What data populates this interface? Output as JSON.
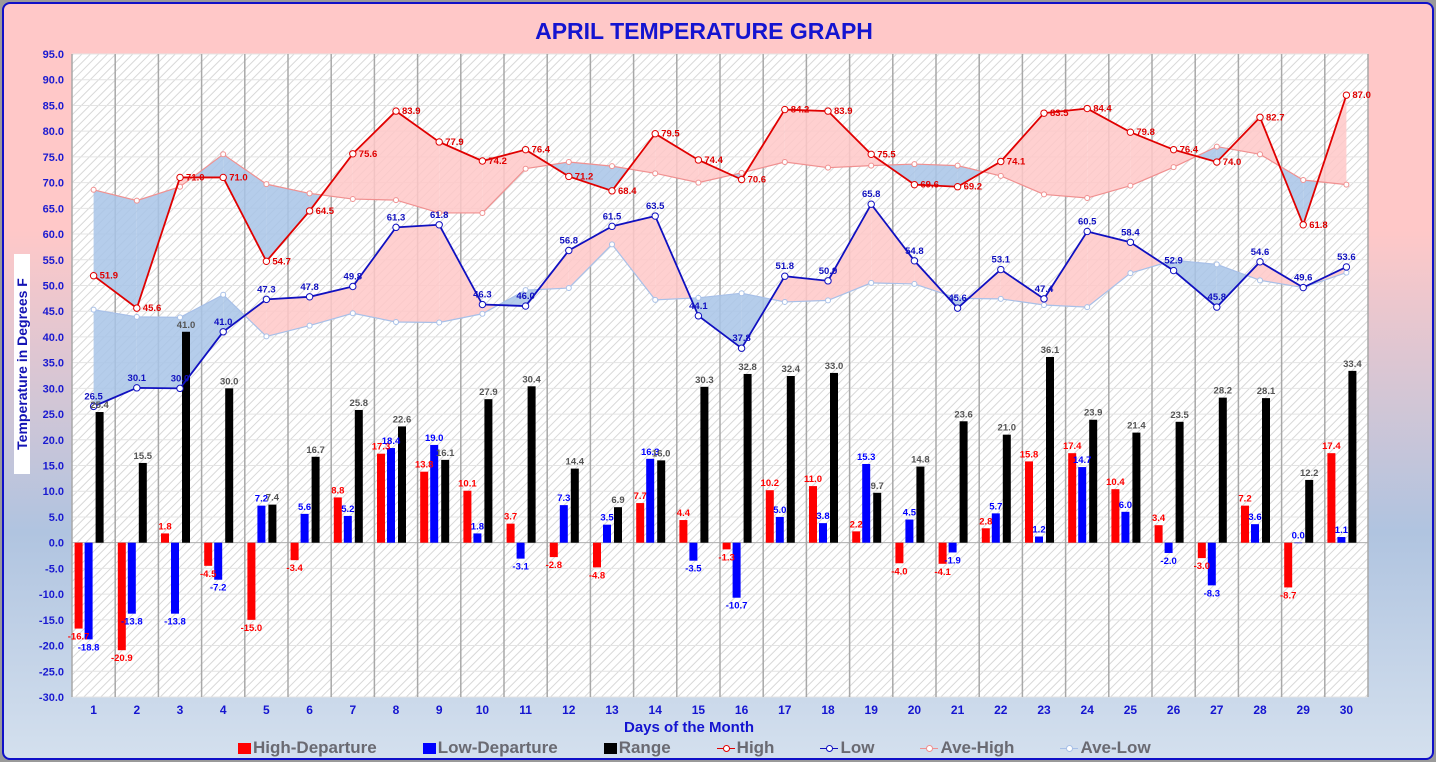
{
  "chart_data": {
    "type": "bar",
    "title": "APRIL TEMPERATURE GRAPH",
    "xlabel": "Days of the Month",
    "ylabel": "Temperature  in  Degrees  F",
    "ylim": [
      -30,
      95
    ],
    "ytick_step": 5,
    "grid": true,
    "legend_position": "bottom",
    "categories": [
      "1",
      "2",
      "3",
      "4",
      "5",
      "6",
      "7",
      "8",
      "9",
      "10",
      "11",
      "12",
      "13",
      "14",
      "15",
      "16",
      "17",
      "18",
      "19",
      "20",
      "21",
      "22",
      "23",
      "24",
      "25",
      "26",
      "27",
      "28",
      "29",
      "30"
    ],
    "series": [
      {
        "name": "High-Departure",
        "type": "bar",
        "color": "#ff0000",
        "values": [
          -16.7,
          -20.9,
          1.8,
          -4.5,
          -15.0,
          -3.4,
          8.8,
          17.3,
          13.8,
          10.1,
          3.7,
          -2.8,
          -4.8,
          7.7,
          4.4,
          -1.3,
          10.2,
          11.0,
          2.2,
          -4.0,
          -4.1,
          2.8,
          15.8,
          17.4,
          10.4,
          3.4,
          -3.0,
          7.2,
          -8.7,
          17.4
        ]
      },
      {
        "name": "Low-Departure",
        "type": "bar",
        "color": "#0000ff",
        "values": [
          -18.8,
          -13.8,
          -13.8,
          -7.2,
          7.2,
          5.6,
          5.2,
          18.4,
          19.0,
          1.8,
          -3.1,
          7.3,
          3.5,
          16.3,
          -3.5,
          -10.7,
          5.0,
          3.8,
          15.3,
          4.5,
          -1.9,
          5.7,
          1.2,
          14.7,
          6.0,
          -2.0,
          -8.3,
          3.6,
          0.0,
          1.1
        ]
      },
      {
        "name": "Range",
        "type": "bar",
        "color": "#000000",
        "values": [
          25.4,
          15.5,
          41.0,
          30.0,
          7.4,
          16.7,
          25.8,
          22.6,
          16.1,
          27.9,
          30.4,
          14.4,
          6.9,
          16.0,
          30.3,
          32.8,
          32.4,
          33.0,
          9.7,
          14.8,
          23.6,
          21.0,
          36.1,
          23.9,
          21.4,
          23.5,
          28.2,
          28.1,
          12.2,
          33.4
        ]
      },
      {
        "name": "High",
        "type": "line",
        "color": "#e00000",
        "values": [
          51.9,
          45.6,
          71.0,
          71.0,
          54.7,
          64.5,
          75.6,
          83.9,
          77.9,
          74.2,
          76.4,
          71.2,
          68.4,
          79.5,
          74.4,
          70.6,
          84.2,
          83.9,
          75.5,
          69.6,
          69.2,
          74.1,
          83.5,
          84.4,
          79.8,
          76.4,
          74.0,
          82.7,
          61.8,
          87.0
        ]
      },
      {
        "name": "Low",
        "type": "line",
        "color": "#1010c0",
        "values": [
          26.5,
          30.1,
          30.0,
          41.0,
          47.3,
          47.8,
          49.8,
          61.3,
          61.8,
          46.3,
          46.0,
          56.8,
          61.5,
          63.5,
          44.1,
          37.8,
          51.8,
          50.9,
          65.8,
          54.8,
          45.6,
          53.1,
          47.4,
          60.5,
          58.4,
          52.9,
          45.8,
          54.6,
          49.6,
          53.6
        ]
      },
      {
        "name": "Ave-High",
        "type": "line",
        "color": "#f09090",
        "values": [
          68.6,
          66.5,
          69.2,
          75.5,
          69.7,
          67.9,
          66.8,
          66.6,
          64.1,
          64.1,
          72.7,
          74.0,
          73.2,
          71.8,
          70.0,
          71.9,
          74.0,
          72.9,
          73.3,
          73.6,
          73.3,
          71.3,
          67.7,
          67.0,
          69.4,
          73.0,
          77.0,
          75.5,
          70.5,
          69.6
        ]
      },
      {
        "name": "Ave-Low",
        "type": "line",
        "color": "#a8c0e8",
        "values": [
          45.3,
          43.9,
          43.8,
          48.2,
          40.1,
          42.2,
          44.6,
          42.9,
          42.8,
          44.5,
          49.1,
          49.5,
          58.0,
          47.2,
          47.6,
          48.5,
          46.8,
          47.1,
          50.5,
          50.3,
          47.5,
          47.4,
          46.2,
          45.8,
          52.4,
          54.9,
          54.1,
          51.0,
          49.6,
          52.5
        ]
      }
    ],
    "fills": {
      "above_average": "#ffc8c8",
      "below_average": "#a8c4e8"
    }
  },
  "legend": [
    {
      "label": "High-Departure",
      "kind": "bar",
      "color": "#ff0000"
    },
    {
      "label": "Low-Departure",
      "kind": "bar",
      "color": "#0000ff"
    },
    {
      "label": "Range",
      "kind": "bar",
      "color": "#000000"
    },
    {
      "label": "High",
      "kind": "line",
      "color": "#e00000"
    },
    {
      "label": "Low",
      "kind": "line",
      "color": "#1010c0"
    },
    {
      "label": "Ave-High",
      "kind": "line",
      "color": "#f09090"
    },
    {
      "label": "Ave-Low",
      "kind": "line",
      "color": "#a8c0e8"
    }
  ]
}
